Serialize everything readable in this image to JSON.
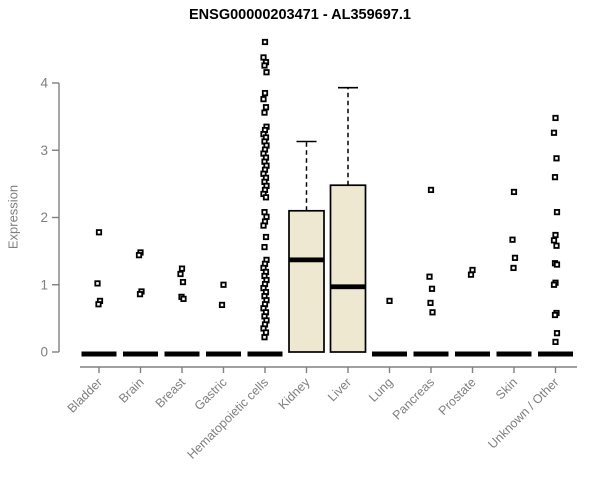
{
  "chart_data": {
    "type": "boxplot",
    "title": "ENSG00000203471 - AL359697.1",
    "ylabel": "Expression",
    "xlabel": "",
    "ylim": [
      0,
      4.7
    ],
    "yticks": [
      0,
      1,
      2,
      3,
      4
    ],
    "grid": "off",
    "legend": "none",
    "colors": {
      "box_fill": "#EEE8D0",
      "box_stroke": "#000000",
      "median": "#000000",
      "axis": "#808080",
      "tick_text": "#7f7f7f",
      "point_stroke": "#000000",
      "point_fill": "#ffffff",
      "background": "#ffffff",
      "title_text": "#000000"
    },
    "categories": [
      "Bladder",
      "Brain",
      "Breast",
      "Gastric",
      "Hematopoietic cells",
      "Kidney",
      "Liver",
      "Lung",
      "Pancreas",
      "Prostate",
      "Skin",
      "Unknown / Other"
    ],
    "series": [
      {
        "category": "Bladder",
        "q1": 0,
        "median": 0,
        "q3": 0,
        "whisker_low": 0,
        "whisker_high": 0,
        "points": [
          1.78,
          1.02,
          0.76,
          0.71
        ]
      },
      {
        "category": "Brain",
        "q1": 0,
        "median": 0,
        "q3": 0,
        "whisker_low": 0,
        "whisker_high": 0,
        "points": [
          1.48,
          1.44,
          0.9,
          0.86
        ]
      },
      {
        "category": "Breast",
        "q1": 0,
        "median": 0,
        "q3": 0,
        "whisker_low": 0,
        "whisker_high": 0,
        "points": [
          1.24,
          1.16,
          1.04,
          0.82,
          0.79
        ]
      },
      {
        "category": "Gastric",
        "q1": 0,
        "median": 0,
        "q3": 0,
        "whisker_low": 0,
        "whisker_high": 0,
        "points": [
          1.0,
          0.7
        ]
      },
      {
        "category": "Hematopoietic cells",
        "q1": 0,
        "median": 0,
        "q3": 0,
        "whisker_low": 0,
        "whisker_high": 0,
        "points": [
          4.61,
          4.38,
          4.31,
          4.26,
          4.16,
          3.85,
          3.76,
          3.64,
          3.56,
          3.35,
          3.3,
          3.24,
          3.19,
          3.13,
          3.07,
          3.01,
          2.95,
          2.89,
          2.83,
          2.77,
          2.71,
          2.65,
          2.59,
          2.53,
          2.47,
          2.41,
          2.35,
          2.3,
          2.08,
          2.01,
          1.94,
          1.88,
          1.71,
          1.56,
          1.37,
          1.31,
          1.25,
          1.19,
          1.13,
          1.07,
          1.01,
          0.95,
          0.89,
          0.83,
          0.77,
          0.71,
          0.65,
          0.59,
          0.53,
          0.47,
          0.41,
          0.35,
          0.29,
          0.22
        ]
      },
      {
        "category": "Kidney",
        "q1": 0,
        "median": 1.37,
        "q3": 2.1,
        "whisker_low": 0,
        "whisker_high": 3.13,
        "points": []
      },
      {
        "category": "Liver",
        "q1": 0,
        "median": 0.97,
        "q3": 2.48,
        "whisker_low": 0,
        "whisker_high": 3.93,
        "points": []
      },
      {
        "category": "Lung",
        "q1": 0,
        "median": 0,
        "q3": 0,
        "whisker_low": 0,
        "whisker_high": 0,
        "points": [
          0.76
        ]
      },
      {
        "category": "Pancreas",
        "q1": 0,
        "median": 0,
        "q3": 0,
        "whisker_low": 0,
        "whisker_high": 0,
        "points": [
          2.41,
          1.12,
          0.94,
          0.73,
          0.59
        ]
      },
      {
        "category": "Prostate",
        "q1": 0,
        "median": 0,
        "q3": 0,
        "whisker_low": 0,
        "whisker_high": 0,
        "points": [
          1.22,
          1.15
        ]
      },
      {
        "category": "Skin",
        "q1": 0,
        "median": 0,
        "q3": 0,
        "whisker_low": 0,
        "whisker_high": 0,
        "points": [
          2.38,
          1.67,
          1.4,
          1.25
        ]
      },
      {
        "category": "Unknown / Other",
        "q1": 0,
        "median": 0,
        "q3": 0,
        "whisker_low": 0,
        "whisker_high": 0,
        "points": [
          3.48,
          3.26,
          2.88,
          2.6,
          2.08,
          1.74,
          1.66,
          1.58,
          1.32,
          1.3,
          1.03,
          1.0,
          0.58,
          0.55,
          0.28,
          0.15
        ]
      }
    ]
  }
}
